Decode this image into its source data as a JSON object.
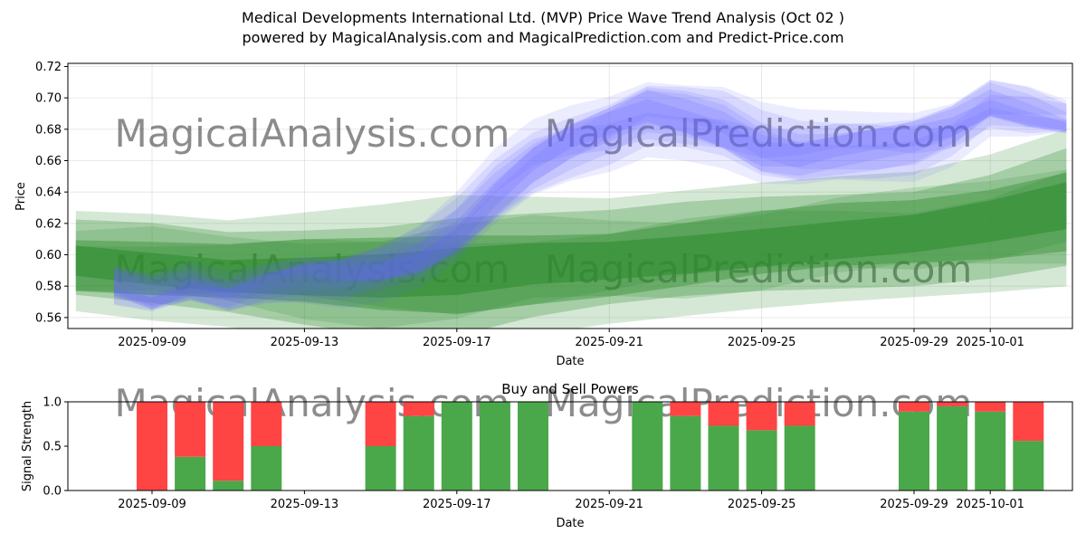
{
  "title_line1": "Medical Developments International Ltd. (MVP) Price Wave Trend Analysis (Oct 02 )",
  "title_line2": "powered by MagicalAnalysis.com and MagicalPrediction.com and Predict-Price.com",
  "watermarks": [
    "MagicalAnalysis.com",
    "MagicalPrediction.com"
  ],
  "colors": {
    "blue_band": "#6464ff",
    "green_band": "#2e8b2e",
    "buy": "#4aa84a",
    "sell": "#ff4444"
  },
  "chart_data": [
    {
      "type": "area",
      "title": "",
      "xlabel": "Date",
      "ylabel": "Price",
      "ylim": [
        0.553,
        0.722
      ],
      "x_start": "2025-09-07",
      "x_end": "2025-10-04",
      "yticks": [
        "0.56",
        "0.58",
        "0.60",
        "0.62",
        "0.64",
        "0.66",
        "0.68",
        "0.70",
        "0.72"
      ],
      "xticks": [
        "2025-09-09",
        "2025-09-13",
        "2025-09-17",
        "2025-09-21",
        "2025-09-25",
        "2025-09-29",
        "2025-10-01"
      ],
      "series": [
        {
          "name": "blue wave band",
          "x": [
            "2025-09-08",
            "2025-09-09",
            "2025-09-10",
            "2025-09-11",
            "2025-09-12",
            "2025-09-13",
            "2025-09-14",
            "2025-09-15",
            "2025-09-16",
            "2025-09-17",
            "2025-09-18",
            "2025-09-19",
            "2025-09-20",
            "2025-09-21",
            "2025-09-22",
            "2025-09-23",
            "2025-09-24",
            "2025-09-25",
            "2025-09-26",
            "2025-09-27",
            "2025-09-28",
            "2025-09-29",
            "2025-09-30",
            "2025-10-01",
            "2025-10-02",
            "2025-10-03"
          ],
          "values": [
            0.58,
            0.573,
            0.58,
            0.575,
            0.582,
            0.586,
            0.586,
            0.59,
            0.598,
            0.615,
            0.64,
            0.66,
            0.672,
            0.68,
            0.69,
            0.686,
            0.68,
            0.668,
            0.665,
            0.668,
            0.67,
            0.672,
            0.68,
            0.695,
            0.69,
            0.685
          ],
          "spread": [
            0.012,
            0.012,
            0.012,
            0.012,
            0.012,
            0.014,
            0.016,
            0.018,
            0.02,
            0.022,
            0.024,
            0.024,
            0.024,
            0.024,
            0.024,
            0.024,
            0.026,
            0.026,
            0.024,
            0.022,
            0.022,
            0.022,
            0.02,
            0.018,
            0.016,
            0.01
          ]
        },
        {
          "name": "green wave band",
          "x": [
            "2025-09-07",
            "2025-09-09",
            "2025-09-11",
            "2025-09-13",
            "2025-09-15",
            "2025-09-17",
            "2025-09-19",
            "2025-09-21",
            "2025-09-23",
            "2025-09-25",
            "2025-09-27",
            "2025-09-29",
            "2025-10-01",
            "2025-10-03"
          ],
          "values": [
            0.596,
            0.592,
            0.588,
            0.587,
            0.586,
            0.588,
            0.593,
            0.596,
            0.601,
            0.606,
            0.61,
            0.613,
            0.62,
            0.63
          ],
          "spread": [
            0.032,
            0.034,
            0.034,
            0.04,
            0.046,
            0.05,
            0.044,
            0.04,
            0.04,
            0.04,
            0.04,
            0.04,
            0.044,
            0.05
          ]
        }
      ]
    },
    {
      "type": "bar",
      "title": "Buy and Sell Powers",
      "xlabel": "Date",
      "ylabel": "Signal Strength",
      "ylim": [
        0,
        1
      ],
      "yticks": [
        "0.0",
        "0.5",
        "1.0"
      ],
      "xticks": [
        "2025-09-09",
        "2025-09-13",
        "2025-09-17",
        "2025-09-21",
        "2025-09-25",
        "2025-09-29",
        "2025-10-01"
      ],
      "categories": [
        "2025-09-09",
        "2025-09-10",
        "2025-09-11",
        "2025-09-12",
        "2025-09-15",
        "2025-09-16",
        "2025-09-17",
        "2025-09-18",
        "2025-09-19",
        "2025-09-22",
        "2025-09-23",
        "2025-09-24",
        "2025-09-25",
        "2025-09-26",
        "2025-09-29",
        "2025-09-30",
        "2025-10-01",
        "2025-10-02"
      ],
      "series": [
        {
          "name": "Buy",
          "values": [
            0.0,
            0.38,
            0.11,
            0.5,
            0.5,
            0.84,
            1.0,
            1.0,
            1.0,
            1.0,
            0.84,
            0.73,
            0.68,
            0.73,
            0.89,
            0.95,
            0.89,
            0.56
          ]
        },
        {
          "name": "Sell",
          "values": [
            1.0,
            0.62,
            0.89,
            0.5,
            0.5,
            0.16,
            0.0,
            0.0,
            0.0,
            0.0,
            0.16,
            0.27,
            0.32,
            0.27,
            0.11,
            0.05,
            0.11,
            0.44
          ]
        }
      ]
    }
  ]
}
